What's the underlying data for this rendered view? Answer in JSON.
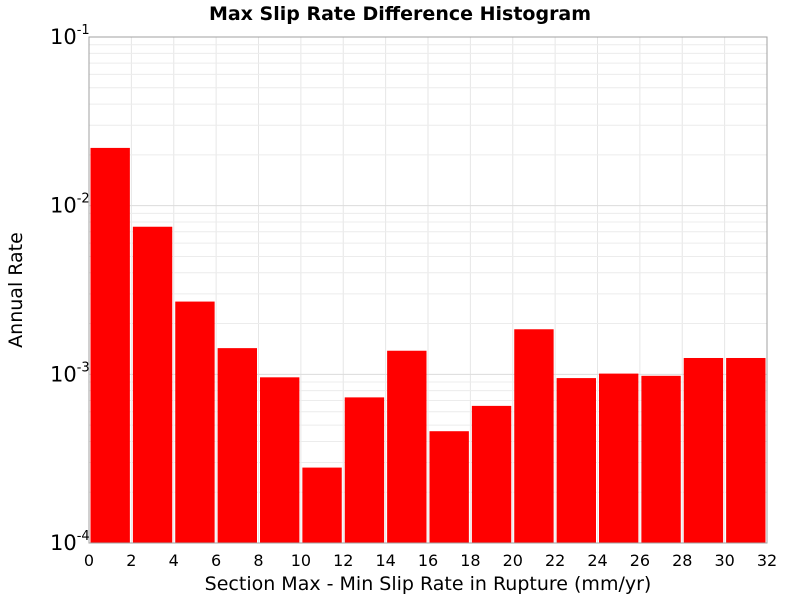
{
  "chart_data": {
    "type": "bar",
    "title": "Max Slip Rate Difference Histogram",
    "xlabel": "Section Max - Min Slip Rate in Rupture (mm/yr)",
    "ylabel": "Annual Rate",
    "yscale": "log",
    "xlim": [
      0,
      32
    ],
    "ylim": [
      0.0001,
      0.1
    ],
    "bin_width": 2,
    "x_ticks": [
      0,
      2,
      4,
      6,
      8,
      10,
      12,
      14,
      16,
      18,
      20,
      22,
      24,
      26,
      28,
      30,
      32
    ],
    "y_ticks": [
      {
        "base": "10",
        "exp": "-4",
        "value": 0.0001
      },
      {
        "base": "10",
        "exp": "-3",
        "value": 0.001
      },
      {
        "base": "10",
        "exp": "-2",
        "value": 0.01
      },
      {
        "base": "10",
        "exp": "-1",
        "value": 0.1
      }
    ],
    "bar_color": "#ff0000",
    "grid": true,
    "bins": [
      {
        "x_start": 0,
        "value": 0.022
      },
      {
        "x_start": 2,
        "value": 0.0075
      },
      {
        "x_start": 4,
        "value": 0.0027
      },
      {
        "x_start": 6,
        "value": 0.00143
      },
      {
        "x_start": 8,
        "value": 0.00096
      },
      {
        "x_start": 10,
        "value": 0.00028
      },
      {
        "x_start": 12,
        "value": 0.00073
      },
      {
        "x_start": 14,
        "value": 0.00138
      },
      {
        "x_start": 16,
        "value": 0.00046
      },
      {
        "x_start": 18,
        "value": 0.00065
      },
      {
        "x_start": 20,
        "value": 0.00185
      },
      {
        "x_start": 22,
        "value": 0.00095
      },
      {
        "x_start": 24,
        "value": 0.00101
      },
      {
        "x_start": 26,
        "value": 0.00098
      },
      {
        "x_start": 28,
        "value": 0.00125
      },
      {
        "x_start": 30,
        "value": 0.00125
      }
    ]
  }
}
